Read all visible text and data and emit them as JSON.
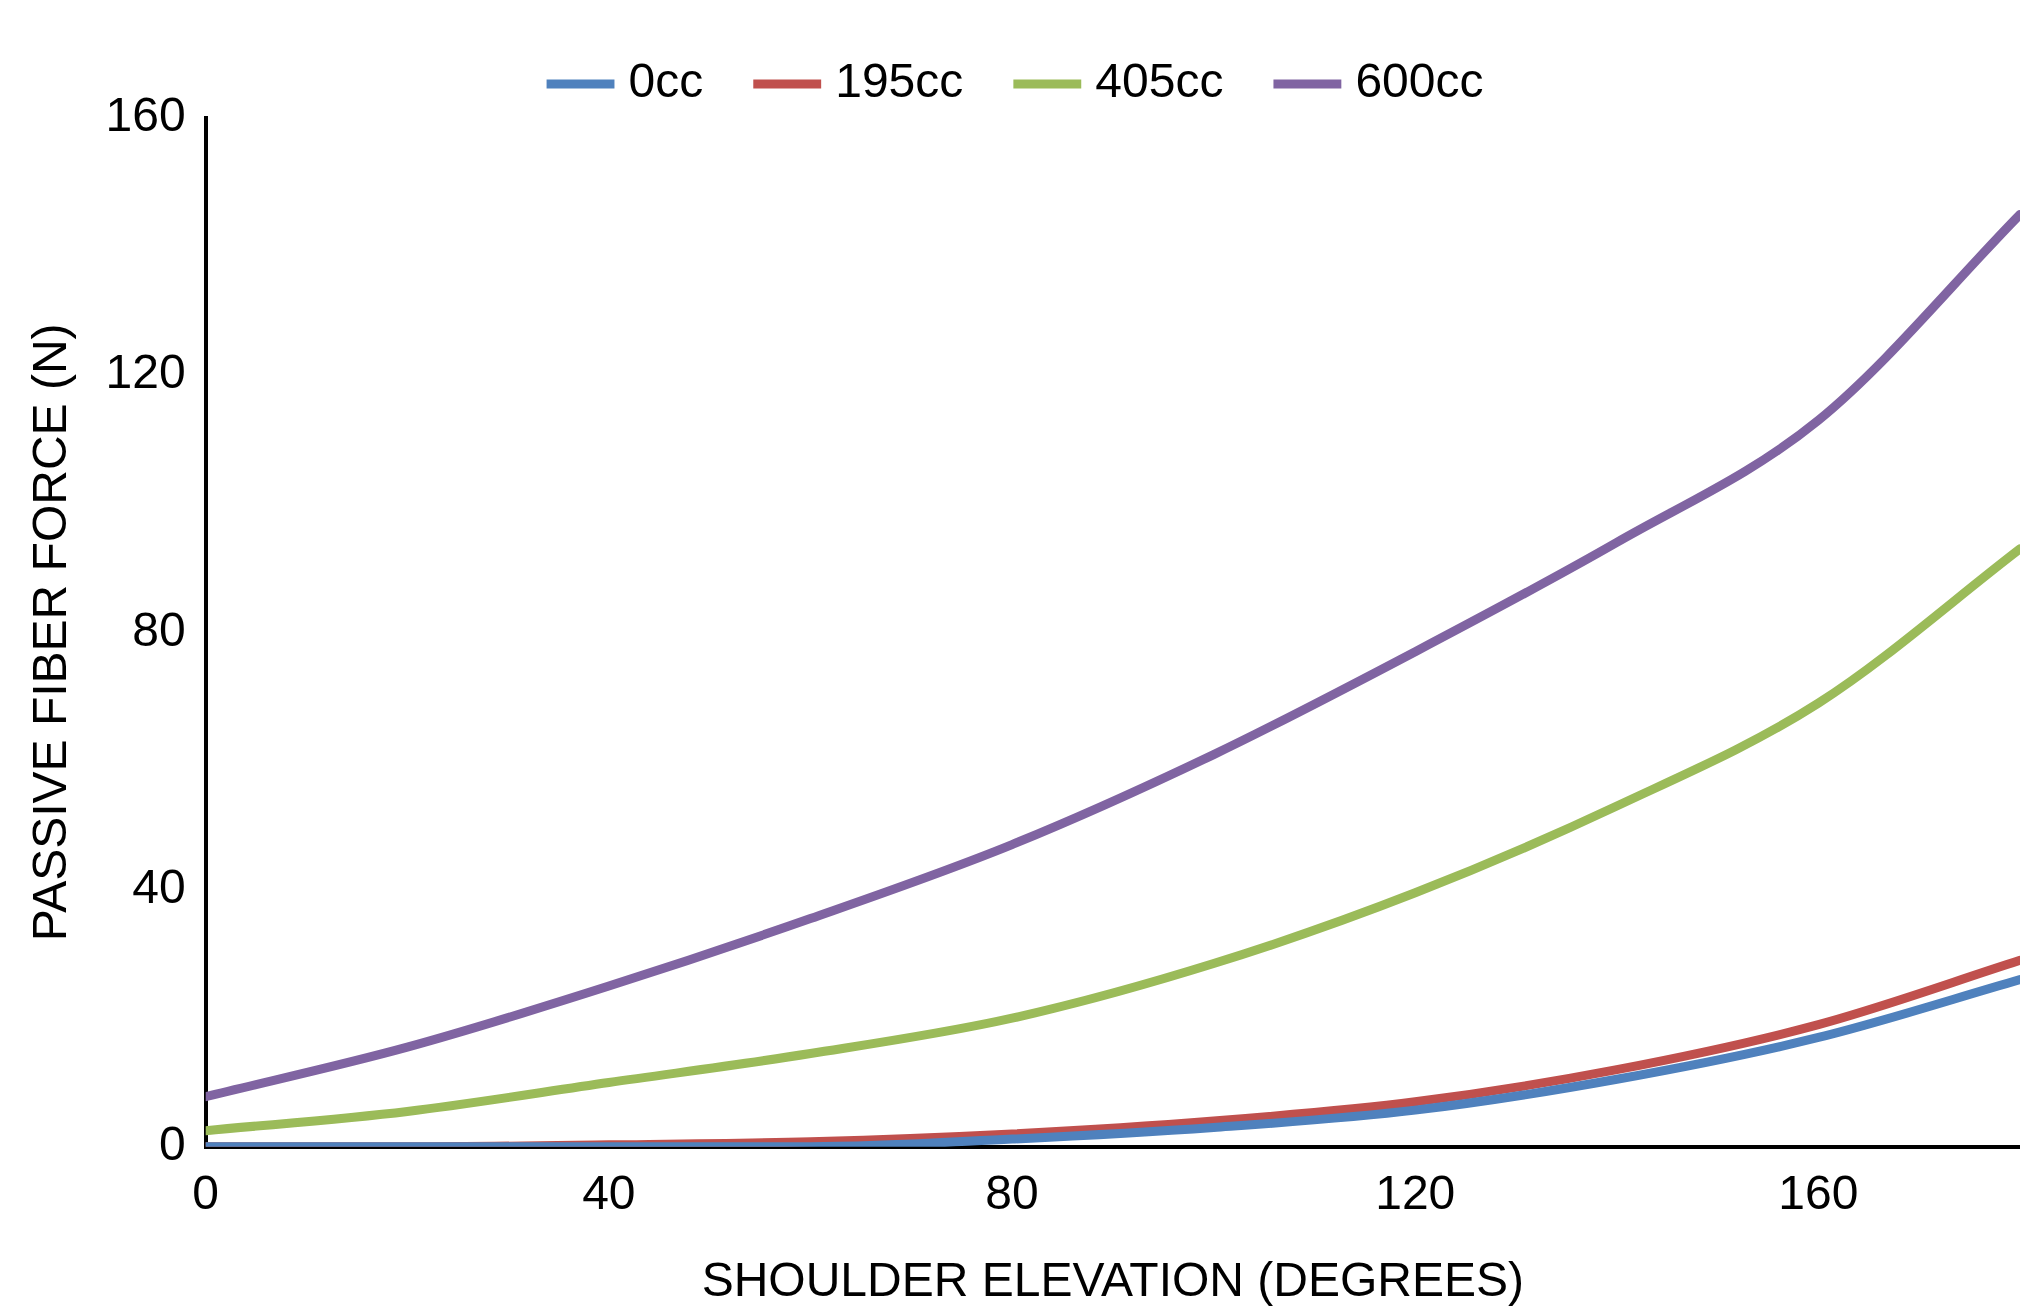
{
  "chart_data": {
    "type": "line",
    "xlabel": "SHOULDER ELEVATION (DEGREES)",
    "ylabel": "PASSIVE FIBER FORCE (N)",
    "x": [
      0,
      20,
      40,
      60,
      80,
      100,
      120,
      140,
      160,
      180
    ],
    "series": [
      {
        "name": "0cc",
        "color": "#4f81bd",
        "values": [
          0,
          0,
          0,
          0,
          1.2,
          3,
          5.7,
          10.5,
          17,
          26
        ]
      },
      {
        "name": "195cc",
        "color": "#c0504d",
        "values": [
          0,
          0,
          0.3,
          0.8,
          2,
          4,
          7,
          12,
          19,
          29
        ]
      },
      {
        "name": "405cc",
        "color": "#9bbb59",
        "values": [
          2.5,
          5.5,
          10,
          14.5,
          20,
          28.5,
          39.5,
          53,
          69,
          93
        ]
      },
      {
        "name": "600cc",
        "color": "#8064a2",
        "values": [
          7.8,
          15.5,
          25,
          35.5,
          47,
          61,
          77,
          94,
          113,
          145
        ]
      }
    ],
    "xlim": [
      0,
      180
    ],
    "xticks": [
      0,
      40,
      80,
      120,
      160
    ],
    "ylim": [
      0,
      160
    ],
    "yticks": [
      0,
      40,
      80,
      120,
      160
    ],
    "grid": false,
    "legend": "top",
    "marker": "none",
    "line_style": "solid"
  }
}
